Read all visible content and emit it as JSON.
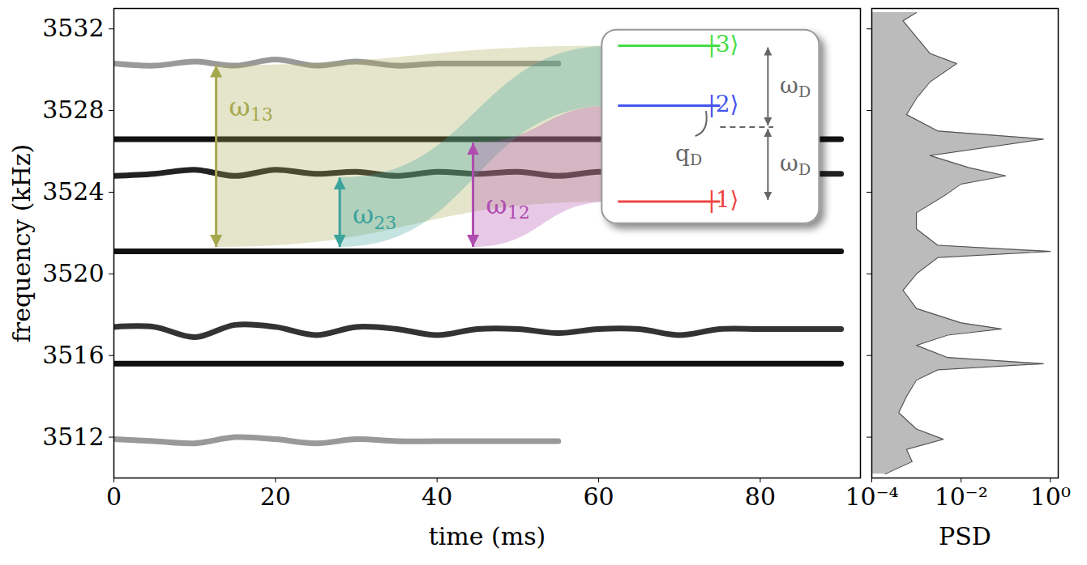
{
  "chart_data": [
    {
      "type": "line",
      "xlabel": "time (ms)",
      "ylabel": "frequency (kHz)",
      "xlim": [
        0,
        92.4
      ],
      "xticks": [
        0,
        20,
        40,
        60,
        80
      ],
      "ylim": [
        3510,
        3533
      ],
      "yticks": [
        3512,
        3516,
        3520,
        3524,
        3528,
        3532
      ],
      "x": [
        0,
        5,
        10,
        15,
        20,
        25,
        30,
        35,
        40,
        45,
        50,
        55,
        60,
        65,
        70,
        75,
        80,
        85,
        90
      ],
      "series": [
        {
          "color": "#999999",
          "values": [
            3530.3,
            3530.2,
            3530.4,
            3530.2,
            3530.5,
            3530.2,
            3530.4,
            3530.2,
            3530.3,
            3530.3,
            3530.3,
            3530.3,
            null,
            null,
            null,
            null,
            null,
            null,
            null
          ]
        },
        {
          "color": "#111111",
          "values": [
            3526.6,
            3526.6,
            3526.6,
            3526.6,
            3526.6,
            3526.6,
            3526.6,
            3526.6,
            3526.6,
            3526.6,
            3526.6,
            3526.6,
            3526.6,
            3526.6,
            3526.6,
            3526.6,
            3526.6,
            3526.6,
            3526.6
          ]
        },
        {
          "color": "#222222",
          "values": [
            3524.8,
            3524.9,
            3525.1,
            3524.8,
            3525.1,
            3524.9,
            3525.0,
            3524.8,
            3525.0,
            3524.9,
            3525.0,
            3524.8,
            3525.0,
            3524.9,
            3525.0,
            3524.8,
            3524.9,
            3524.9,
            3524.9
          ]
        },
        {
          "color": "#111111",
          "values": [
            3521.1,
            3521.1,
            3521.1,
            3521.1,
            3521.1,
            3521.1,
            3521.1,
            3521.1,
            3521.1,
            3521.1,
            3521.1,
            3521.1,
            3521.1,
            3521.1,
            3521.1,
            3521.1,
            3521.1,
            3521.1,
            3521.1
          ]
        },
        {
          "color": "#333333",
          "values": [
            3517.4,
            3517.4,
            3516.9,
            3517.5,
            3517.4,
            3517.0,
            3517.4,
            3517.3,
            3517.0,
            3517.3,
            3517.3,
            3517.1,
            3517.3,
            3517.3,
            3517.0,
            3517.3,
            3517.3,
            3517.3,
            3517.3
          ]
        },
        {
          "color": "#111111",
          "values": [
            3515.6,
            3515.6,
            3515.6,
            3515.6,
            3515.6,
            3515.6,
            3515.6,
            3515.6,
            3515.6,
            3515.6,
            3515.6,
            3515.6,
            3515.6,
            3515.6,
            3515.6,
            3515.6,
            3515.6,
            3515.6,
            3515.6
          ]
        },
        {
          "color": "#999999",
          "values": [
            3511.9,
            3511.8,
            3511.7,
            3512.0,
            3511.9,
            3511.7,
            3511.9,
            3511.8,
            3511.8,
            3511.8,
            3511.8,
            3511.8,
            null,
            null,
            null,
            null,
            null,
            null,
            null
          ]
        }
      ],
      "annotations": [
        {
          "label": {
            "symbol": "ω",
            "subscript": "13"
          },
          "color": "#a6a84e",
          "x": 12.7,
          "y1": 3521.3,
          "y2": 3530.2,
          "label_y": 3528.1,
          "connects": [
            "|1⟩",
            "|3⟩"
          ]
        },
        {
          "label": {
            "symbol": "ω",
            "subscript": "23"
          },
          "color": "#3aa39c",
          "x": 28,
          "y1": 3521.3,
          "y2": 3524.7,
          "label_y": 3522.8,
          "connects": [
            "|2⟩",
            "|3⟩"
          ]
        },
        {
          "label": {
            "symbol": "ω",
            "subscript": "12"
          },
          "color": "#b04bb0",
          "x": 44.5,
          "y1": 3521.3,
          "y2": 3526.4,
          "label_y": 3523.3,
          "connects": [
            "|1⟩",
            "|2⟩"
          ]
        }
      ],
      "inset": {
        "levels": [
          {
            "label": "|3⟩",
            "color": "#44dd44"
          },
          {
            "label": "|2⟩",
            "color": "#4455ee"
          },
          {
            "label": "|1⟩",
            "color": "#ee4444"
          }
        ],
        "splitting": {
          "symbol": "ω",
          "subscript": "D"
        },
        "offset": {
          "symbol": "q",
          "subscript": "D"
        },
        "color": "#666666"
      }
    },
    {
      "type": "area",
      "xlabel": "PSD",
      "log": "x",
      "orientation": "horizontal",
      "tick_labels": "x",
      "color": "#555555",
      "xlim": [
        0.0001,
        1.5
      ],
      "xticks": [
        {
          "value": 0.0001,
          "label": "10⁻⁴"
        },
        {
          "value": 0.01,
          "label": "10⁻²"
        },
        {
          "value": 1,
          "label": "10⁰"
        }
      ],
      "ylim": [
        3510,
        3533
      ],
      "yticks": [
        3512,
        3516,
        3520,
        3524,
        3528,
        3532
      ],
      "y": [
        3510.2,
        3510.8,
        3511.4,
        3511.9,
        3512.4,
        3513.2,
        3514.0,
        3514.8,
        3515.3,
        3515.6,
        3515.9,
        3516.5,
        3517.0,
        3517.3,
        3517.6,
        3518.3,
        3519.2,
        3520.0,
        3520.8,
        3521.1,
        3521.4,
        3522.2,
        3523.0,
        3523.8,
        3524.4,
        3524.8,
        3525.2,
        3525.8,
        3526.6,
        3527.0,
        3527.8,
        3528.6,
        3529.4,
        3530.3,
        3530.8,
        3531.6,
        3532.4,
        3532.8
      ],
      "values": [
        0.0002,
        0.0008,
        0.0006,
        0.004,
        0.001,
        0.0004,
        0.0006,
        0.001,
        0.003,
        0.7,
        0.005,
        0.001,
        0.005,
        0.08,
        0.01,
        0.001,
        0.0005,
        0.001,
        0.003,
        1.0,
        0.003,
        0.001,
        0.001,
        0.004,
        0.01,
        0.1,
        0.015,
        0.002,
        0.7,
        0.003,
        0.0006,
        0.001,
        0.002,
        0.008,
        0.002,
        0.001,
        0.0005,
        0.001
      ]
    }
  ]
}
